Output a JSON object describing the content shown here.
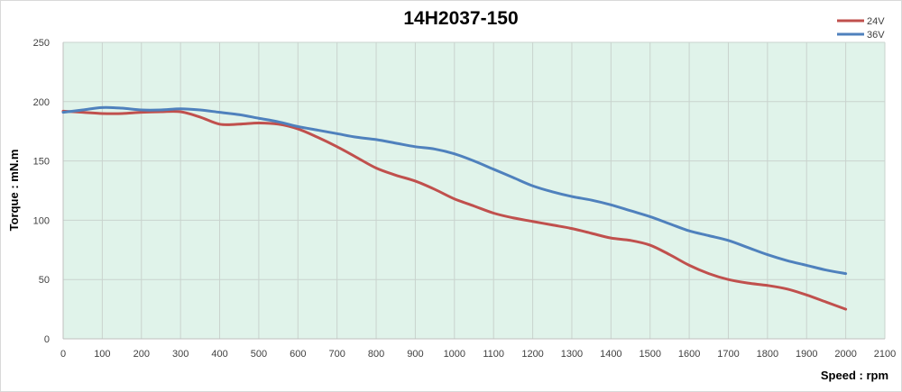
{
  "chart_data": {
    "type": "line",
    "title": "14H2037-150",
    "xlabel": "Speed : rpm",
    "ylabel": "Torque : mN.m",
    "xlim": [
      0,
      2100
    ],
    "ylim": [
      0,
      250
    ],
    "xticks": [
      0,
      100,
      200,
      300,
      400,
      500,
      600,
      700,
      800,
      900,
      1000,
      1100,
      1200,
      1300,
      1400,
      1500,
      1600,
      1700,
      1800,
      1900,
      2000,
      2100
    ],
    "yticks": [
      0,
      50,
      100,
      150,
      200,
      250
    ],
    "grid": true,
    "legend_position": "top-right",
    "plot_background": "#e0f3ea",
    "series": [
      {
        "name": "24V",
        "color": "#c0504d",
        "x": [
          0,
          50,
          100,
          150,
          200,
          250,
          300,
          350,
          400,
          450,
          500,
          550,
          600,
          650,
          700,
          750,
          800,
          850,
          900,
          950,
          1000,
          1050,
          1100,
          1150,
          1200,
          1250,
          1300,
          1350,
          1400,
          1450,
          1500,
          1550,
          1600,
          1650,
          1700,
          1750,
          1800,
          1850,
          1900,
          1950,
          2000
        ],
        "values": [
          192,
          191,
          190,
          190,
          191,
          191.5,
          191.5,
          187,
          181,
          181,
          182,
          181,
          177,
          170,
          162,
          153,
          144,
          138,
          133,
          126,
          118,
          112,
          106,
          102,
          99,
          96,
          93,
          89,
          85,
          83,
          79,
          71,
          62,
          55,
          50,
          47,
          45,
          42,
          37,
          31,
          25
        ]
      },
      {
        "name": "36V",
        "color": "#4f81bd",
        "x": [
          0,
          50,
          100,
          150,
          200,
          250,
          300,
          350,
          400,
          450,
          500,
          550,
          600,
          650,
          700,
          750,
          800,
          850,
          900,
          950,
          1000,
          1050,
          1100,
          1150,
          1200,
          1250,
          1300,
          1350,
          1400,
          1450,
          1500,
          1550,
          1600,
          1650,
          1700,
          1750,
          1800,
          1850,
          1900,
          1950,
          2000
        ],
        "values": [
          191,
          193,
          195,
          194.5,
          193,
          193,
          194,
          193,
          191,
          189,
          186,
          183,
          179,
          176,
          173,
          170,
          168,
          165,
          162,
          160,
          156,
          150,
          143,
          136,
          129,
          124,
          120,
          117,
          113,
          108,
          103,
          97,
          91,
          87,
          83,
          77,
          71,
          66,
          62,
          58,
          55
        ]
      }
    ]
  }
}
